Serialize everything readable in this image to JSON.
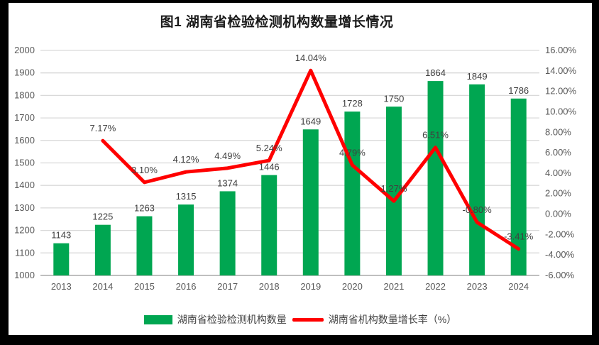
{
  "frame": {
    "border_color": "#000000",
    "background_color": "#ffffff"
  },
  "title": "图1 湖南省检验检测机构数量增长情况",
  "chart_data": {
    "type": "bar",
    "subtype": "combo-bar-line",
    "title": "图1 湖南省检验检测机构数量增长情况",
    "categories": [
      "2013",
      "2014",
      "2015",
      "2016",
      "2017",
      "2018",
      "2019",
      "2020",
      "2021",
      "2022",
      "2023",
      "2024"
    ],
    "series": [
      {
        "name": "湖南省检验检测机构数量",
        "type": "bar",
        "axis": "left",
        "color": "#00A651",
        "values": [
          1143,
          1225,
          1263,
          1315,
          1374,
          1446,
          1649,
          1728,
          1750,
          1864,
          1849,
          1786
        ],
        "labels": [
          "1143",
          "1225",
          "1263",
          "1315",
          "1374",
          "1446",
          "1649",
          "1728",
          "1750",
          "1864",
          "1849",
          "1786"
        ]
      },
      {
        "name": "湖南省机构数量增长率（%）",
        "type": "line",
        "axis": "right",
        "color": "#FF0000",
        "values": [
          null,
          7.17,
          3.1,
          4.12,
          4.49,
          5.24,
          14.04,
          4.79,
          1.27,
          6.51,
          -0.8,
          -3.41
        ],
        "labels": [
          null,
          "7.17%",
          "3.10%",
          "4.12%",
          "4.49%",
          "5.24%",
          "14.04%",
          "4.79%",
          "1.27%",
          "6.51%",
          "-0.80%",
          "-3.41%"
        ]
      }
    ],
    "left_axis": {
      "min": 1000,
      "max": 2000,
      "step": 100,
      "tick_labels": [
        "1000",
        "1100",
        "1200",
        "1300",
        "1400",
        "1500",
        "1600",
        "1700",
        "1800",
        "1900",
        "2000"
      ]
    },
    "right_axis": {
      "min": -6,
      "max": 16,
      "step": 2,
      "tick_labels": [
        "-6.00%",
        "-4.00%",
        "-2.00%",
        "0.00%",
        "2.00%",
        "4.00%",
        "6.00%",
        "8.00%",
        "10.00%",
        "12.00%",
        "14.00%",
        "16.00%"
      ]
    },
    "grid": true,
    "gridline_color": "#D9D9D9",
    "axis_line_color": "#BFBFBF",
    "legend_position": "bottom",
    "label_color": "#404040",
    "tick_color": "#595959"
  },
  "legend": {
    "items": [
      {
        "label": "湖南省检验检测机构数量",
        "swatch": "bar",
        "color": "#00A651"
      },
      {
        "label": "湖南省机构数量增长率（%）",
        "swatch": "line",
        "color": "#FF0000"
      }
    ]
  }
}
